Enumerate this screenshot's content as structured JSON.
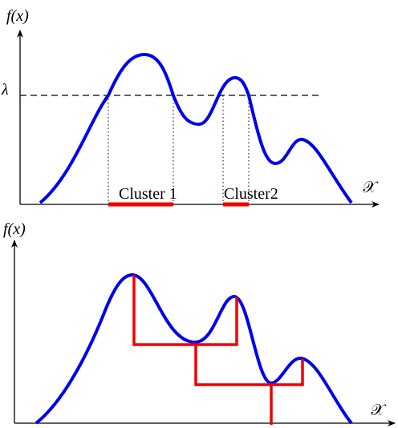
{
  "top": {
    "y_label": "f(x)",
    "threshold_label": "λ",
    "clusters": [
      "Cluster 1",
      "Cluster2"
    ],
    "x_label": "𝒳"
  },
  "bottom": {
    "y_label": "f(x)",
    "x_label": "𝒳"
  }
}
